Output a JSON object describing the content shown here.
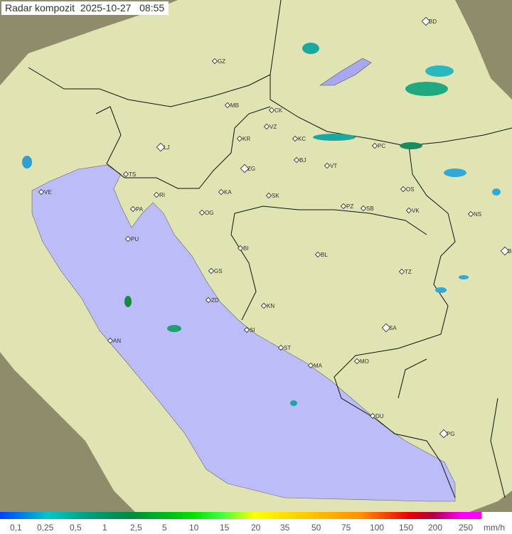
{
  "title": {
    "product": "Radar kompozit",
    "date": "2025-10-27",
    "time": "08:55"
  },
  "colors": {
    "sea": "#bcbcf8",
    "land": "#dfe6b0",
    "outside_range": "#8e8c6a",
    "border": "#000000"
  },
  "cities": [
    "BD",
    "GZ",
    "MB",
    "CK",
    "VZ",
    "KR",
    "KC",
    "LJ",
    "ZG",
    "BJ",
    "VT",
    "PC",
    "TS",
    "VE",
    "RI",
    "KA",
    "SK",
    "OS",
    "PA",
    "OG",
    "PZ",
    "SB",
    "VK",
    "NS",
    "PU",
    "BG",
    "BI",
    "BL",
    "GS",
    "TZ",
    "ZD",
    "KN",
    "SA",
    "SI",
    "AN",
    "ST",
    "MA",
    "MO",
    "DU",
    "PG"
  ],
  "legend": {
    "labels": [
      "0,1",
      "0,25",
      "0,5",
      "1",
      "2,5",
      "5",
      "10",
      "15",
      "20",
      "35",
      "50",
      "75",
      "100",
      "150",
      "200",
      "250"
    ],
    "unit": "mm/h"
  }
}
